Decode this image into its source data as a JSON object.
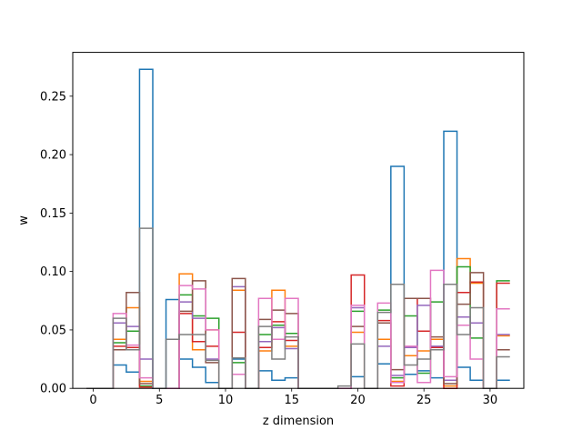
{
  "chart_data": {
    "type": "step",
    "title": "",
    "xlabel": "z dimension",
    "ylabel": "w",
    "xlim": [
      -1.55,
      32.55
    ],
    "ylim": [
      0,
      0.2875
    ],
    "xticks": [
      "0",
      "5",
      "10",
      "15",
      "20",
      "25",
      "30"
    ],
    "xtick_values": [
      0,
      5,
      10,
      15,
      20,
      25,
      30
    ],
    "yticks": [
      "0.00",
      "0.05",
      "0.10",
      "0.15",
      "0.20",
      "0.25"
    ],
    "ytick_values": [
      0,
      0.05,
      0.1,
      0.15,
      0.2,
      0.25
    ],
    "grid": false,
    "x": [
      0,
      1,
      2,
      3,
      4,
      5,
      6,
      7,
      8,
      9,
      10,
      11,
      12,
      13,
      14,
      15,
      16,
      17,
      18,
      19,
      20,
      21,
      22,
      23,
      24,
      25,
      26,
      27,
      28,
      29,
      30,
      31
    ],
    "series": [
      {
        "color": "#1f77b4",
        "values": [
          0,
          0,
          0.02,
          0.014,
          0.273,
          0,
          0.076,
          0.025,
          0.018,
          0.005,
          0,
          0.025,
          0,
          0.015,
          0.007,
          0.009,
          0,
          0,
          0,
          0,
          0.01,
          0,
          0.021,
          0.19,
          0.012,
          0.015,
          0.009,
          0.22,
          0.018,
          0.007,
          0,
          0.007
        ]
      },
      {
        "color": "#ff7f0e",
        "values": [
          0,
          0,
          0.042,
          0.069,
          0.006,
          0,
          0,
          0.098,
          0.033,
          0.05,
          0,
          0.084,
          0,
          0.032,
          0.084,
          0.036,
          0,
          0,
          0,
          0,
          0.048,
          0,
          0.042,
          0.006,
          0.028,
          0.032,
          0.042,
          0.002,
          0.111,
          0.09,
          0,
          0.045
        ]
      },
      {
        "color": "#2ca02c",
        "values": [
          0,
          0,
          0.039,
          0.049,
          0.002,
          0,
          0,
          0.08,
          0.062,
          0.06,
          0,
          0.022,
          0,
          0.046,
          0.054,
          0.047,
          0,
          0,
          0,
          0,
          0.066,
          0,
          0.067,
          0.009,
          0.062,
          0.013,
          0.074,
          0.007,
          0.104,
          0.043,
          0,
          0.092
        ]
      },
      {
        "color": "#d62728",
        "values": [
          0,
          0,
          0.036,
          0.035,
          0.001,
          0,
          0,
          0.064,
          0.04,
          0.036,
          0,
          0.048,
          0,
          0.035,
          0.057,
          0.041,
          0,
          0,
          0,
          0,
          0.097,
          0,
          0.058,
          0.002,
          0.077,
          0.049,
          0.035,
          0.0,
          0.082,
          0.091,
          0,
          0.09
        ]
      },
      {
        "color": "#9467bd",
        "values": [
          0,
          0,
          0.056,
          0.053,
          0.025,
          0,
          0,
          0.074,
          0.06,
          0.025,
          0,
          0.087,
          0,
          0.04,
          0.052,
          0.034,
          0,
          0,
          0,
          0,
          0.069,
          0,
          0.036,
          0.011,
          0.035,
          0.071,
          0.036,
          0.007,
          0.061,
          0.056,
          0,
          0.046
        ]
      },
      {
        "color": "#8c564b",
        "values": [
          0,
          0,
          0.033,
          0.082,
          0.004,
          0,
          0,
          0.066,
          0.092,
          0.022,
          0,
          0.094,
          0,
          0.059,
          0.067,
          0.064,
          0,
          0,
          0,
          0,
          0.053,
          0,
          0.056,
          0.016,
          0.077,
          0.077,
          0.044,
          0.004,
          0.072,
          0.099,
          0,
          0.033
        ]
      },
      {
        "color": "#e377c2",
        "values": [
          0,
          0,
          0.064,
          0.037,
          0.009,
          0,
          0,
          0.088,
          0.085,
          0.05,
          0,
          0.012,
          0,
          0.077,
          0.042,
          0.077,
          0,
          0,
          0,
          0,
          0.071,
          0,
          0.073,
          0.005,
          0.036,
          0.005,
          0.101,
          0.01,
          0.054,
          0.025,
          0,
          0.068
        ]
      },
      {
        "color": "#7f7f7f",
        "values": [
          0,
          0,
          0.06,
          0.033,
          0.137,
          0,
          0.042,
          0.046,
          0.046,
          0.024,
          0,
          0.026,
          0,
          0.053,
          0.025,
          0.044,
          0,
          0,
          0,
          0.002,
          0.038,
          0,
          0.065,
          0.089,
          0.02,
          0.025,
          0.033,
          0.089,
          0.046,
          0.069,
          0,
          0.027
        ]
      }
    ]
  }
}
